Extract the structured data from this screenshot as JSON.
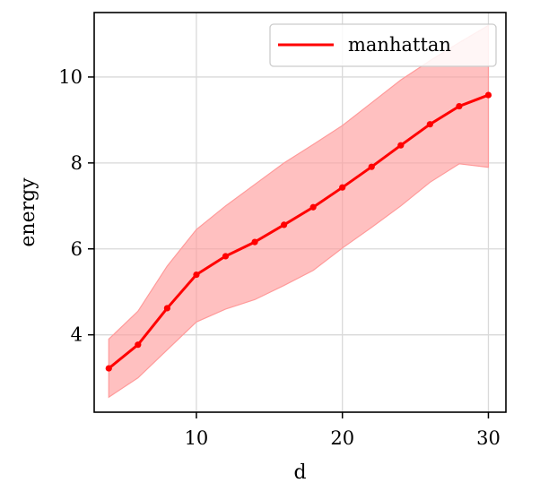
{
  "chart_data": {
    "type": "line",
    "title": "",
    "xlabel": "d",
    "ylabel": "energy",
    "xlim": [
      3,
      31.2
    ],
    "ylim": [
      2.2,
      11.5
    ],
    "xticks": [
      10,
      20,
      30
    ],
    "yticks": [
      4,
      6,
      8,
      10
    ],
    "grid": true,
    "legend_position": "top-right",
    "series": [
      {
        "name": "manhattan",
        "color": "#ff0000",
        "x": [
          4,
          6,
          8,
          10,
          12,
          14,
          16,
          18,
          20,
          22,
          24,
          26,
          28,
          30
        ],
        "y": [
          3.22,
          3.77,
          4.62,
          5.4,
          5.83,
          6.16,
          6.56,
          6.97,
          7.43,
          7.91,
          8.41,
          8.9,
          9.32,
          9.58
        ],
        "band_upper": [
          3.9,
          4.55,
          5.6,
          6.45,
          7.0,
          7.5,
          8.0,
          8.43,
          8.87,
          9.4,
          9.93,
          10.38,
          10.8,
          11.2
        ],
        "band_lower": [
          2.55,
          3.0,
          3.65,
          4.3,
          4.6,
          4.82,
          5.15,
          5.5,
          6.02,
          6.5,
          7.0,
          7.55,
          7.98,
          7.9
        ],
        "band_color": "#ff9a9a"
      }
    ]
  }
}
